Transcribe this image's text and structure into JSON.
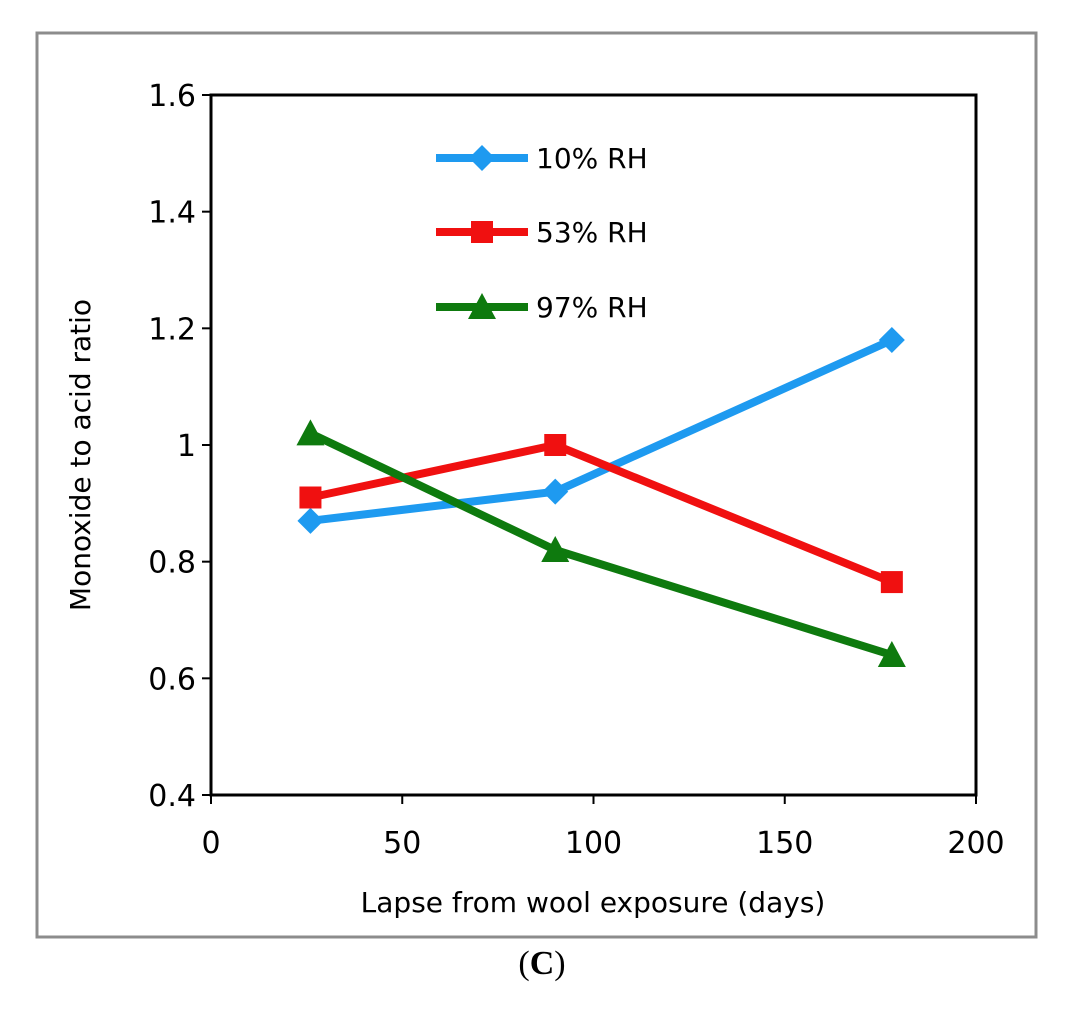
{
  "chart_data": {
    "type": "line",
    "title": "",
    "xlabel": "Lapse from wool exposure (days)",
    "ylabel": "Monoxide to acid ratio",
    "xlim": [
      0,
      200
    ],
    "ylim": [
      0.4,
      1.6
    ],
    "xticks": [
      0,
      50,
      100,
      150,
      200
    ],
    "xtick_labels": [
      "0",
      "50",
      "100",
      "150",
      "200"
    ],
    "yticks": [
      0.4,
      0.6,
      0.8,
      1.0,
      1.2,
      1.4,
      1.6
    ],
    "ytick_labels": [
      "0.4",
      "0.6",
      "0.8",
      "1",
      "1.2",
      "1.4",
      "1.6"
    ],
    "grid": false,
    "legend_position": "top-left inside plot",
    "series": [
      {
        "name": "10% RH",
        "marker": "diamond",
        "color": "#1E9AF0",
        "x": [
          26,
          90,
          178
        ],
        "y": [
          0.87,
          0.92,
          1.18
        ]
      },
      {
        "name": "53% RH",
        "marker": "square",
        "color": "#F01010",
        "x": [
          26,
          90,
          178
        ],
        "y": [
          0.91,
          1.0,
          0.765
        ]
      },
      {
        "name": "97% RH",
        "marker": "triangle",
        "color": "#0E7A0E",
        "x": [
          26,
          90,
          178
        ],
        "y": [
          1.02,
          0.82,
          0.64
        ]
      }
    ]
  },
  "panel_label": "C"
}
